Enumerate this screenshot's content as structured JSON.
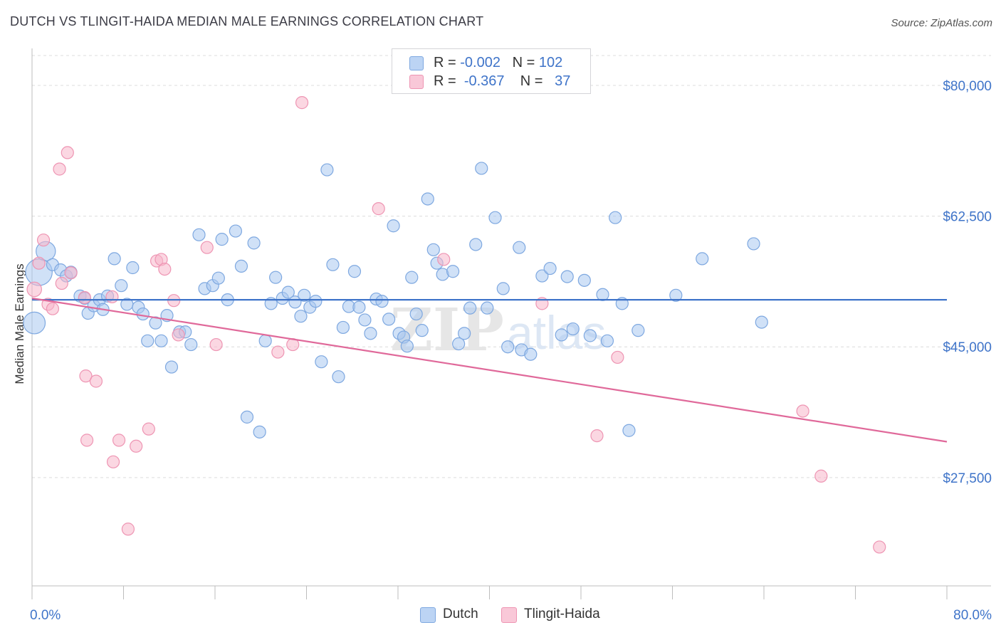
{
  "title": "DUTCH VS TLINGIT-HAIDA MEDIAN MALE EARNINGS CORRELATION CHART",
  "source": "Source: ZipAtlas.com",
  "watermark": "ZIPatlas",
  "legend": {
    "rows": [
      {
        "r_label": "R =",
        "r_value": "-0.002",
        "n_label": "N =",
        "n_value": "102"
      },
      {
        "r_label": "R =",
        "r_value": "-0.367",
        "n_label": "N =",
        "n_value": "37"
      }
    ]
  },
  "bottom_legend": [
    "Dutch",
    "Tlingit-Haida"
  ],
  "colors": {
    "dutch_fill": "#a9c8f0",
    "dutch_stroke": "#7ea8e0",
    "dutch_line": "#3f74c9",
    "tlingit_fill": "#f7b6cb",
    "tlingit_stroke": "#ee95b3",
    "tlingit_line": "#e0699a",
    "axis_text": "#3f74c9",
    "grid": "#dcdcdc"
  },
  "chart_data": {
    "type": "scatter",
    "title": "DUTCH VS TLINGIT-HAIDA MEDIAN MALE EARNINGS CORRELATION CHART",
    "xlabel": "",
    "ylabel": "Median Male Earnings",
    "xlim": [
      0,
      80
    ],
    "ylim": [
      13000,
      84000
    ],
    "x_tick_labels": [
      "0.0%",
      "80.0%"
    ],
    "y_ticks": [
      27500,
      45000,
      62500,
      80000
    ],
    "y_tick_labels": [
      "$27,500",
      "$45,000",
      "$62,500",
      "$80,000"
    ],
    "grid": true,
    "legend_position": "top-center",
    "series": [
      {
        "name": "Dutch",
        "trend": {
          "x": [
            0,
            80
          ],
          "y": [
            51300,
            51300
          ]
        },
        "points": [
          [
            1.2,
            57800,
            16
          ],
          [
            0.6,
            55000,
            22
          ],
          [
            0.2,
            48200,
            18
          ],
          [
            1.8,
            56000,
            10
          ],
          [
            2.5,
            55300,
            10
          ],
          [
            3.0,
            54500,
            10
          ],
          [
            3.4,
            55000,
            10
          ],
          [
            4.2,
            51800,
            10
          ],
          [
            4.6,
            51500,
            10
          ],
          [
            4.9,
            49500,
            10
          ],
          [
            5.4,
            50500,
            10
          ],
          [
            5.9,
            51300,
            10
          ],
          [
            6.2,
            50000,
            10
          ],
          [
            6.6,
            51800,
            10
          ],
          [
            7.2,
            56800,
            10
          ],
          [
            7.8,
            53200,
            10
          ],
          [
            8.3,
            50700,
            10
          ],
          [
            8.8,
            55600,
            10
          ],
          [
            9.3,
            50300,
            10
          ],
          [
            9.7,
            49400,
            10
          ],
          [
            10.1,
            45800,
            10
          ],
          [
            10.8,
            48200,
            10
          ],
          [
            11.3,
            45800,
            10
          ],
          [
            11.8,
            49200,
            10
          ],
          [
            12.2,
            42300,
            10
          ],
          [
            12.9,
            47000,
            10
          ],
          [
            13.4,
            47000,
            10
          ],
          [
            13.9,
            45300,
            10
          ],
          [
            14.6,
            60000,
            10
          ],
          [
            15.1,
            52800,
            10
          ],
          [
            15.8,
            53200,
            10
          ],
          [
            16.3,
            54200,
            10
          ],
          [
            16.6,
            59400,
            10
          ],
          [
            17.1,
            51300,
            10
          ],
          [
            17.8,
            60500,
            10
          ],
          [
            18.3,
            55800,
            10
          ],
          [
            18.8,
            35600,
            10
          ],
          [
            19.4,
            58900,
            10
          ],
          [
            19.9,
            33600,
            10
          ],
          [
            20.4,
            45800,
            10
          ],
          [
            20.9,
            50800,
            10
          ],
          [
            21.3,
            54300,
            10
          ],
          [
            21.9,
            51500,
            10
          ],
          [
            22.4,
            52300,
            10
          ],
          [
            23.0,
            51000,
            10
          ],
          [
            23.5,
            49100,
            10
          ],
          [
            23.8,
            51900,
            10
          ],
          [
            24.3,
            50300,
            10
          ],
          [
            24.8,
            51100,
            10
          ],
          [
            25.3,
            43000,
            10
          ],
          [
            25.8,
            68700,
            10
          ],
          [
            26.3,
            56000,
            10
          ],
          [
            26.8,
            41000,
            10
          ],
          [
            27.2,
            47600,
            10
          ],
          [
            27.7,
            50400,
            10
          ],
          [
            28.2,
            55100,
            10
          ],
          [
            28.6,
            50300,
            10
          ],
          [
            29.1,
            48600,
            10
          ],
          [
            29.6,
            46800,
            10
          ],
          [
            30.1,
            51400,
            10
          ],
          [
            30.6,
            51100,
            10
          ],
          [
            31.2,
            48700,
            10
          ],
          [
            31.6,
            61200,
            10
          ],
          [
            32.1,
            46800,
            10
          ],
          [
            32.5,
            46300,
            10
          ],
          [
            32.8,
            45100,
            10
          ],
          [
            33.2,
            54300,
            10
          ],
          [
            33.6,
            49400,
            10
          ],
          [
            34.1,
            47200,
            10
          ],
          [
            34.6,
            64800,
            10
          ],
          [
            35.1,
            58000,
            10
          ],
          [
            35.4,
            56200,
            10
          ],
          [
            35.9,
            54700,
            10
          ],
          [
            36.8,
            55100,
            10
          ],
          [
            37.3,
            45400,
            10
          ],
          [
            37.8,
            46800,
            10
          ],
          [
            38.3,
            50200,
            10
          ],
          [
            38.8,
            58700,
            10
          ],
          [
            39.3,
            68900,
            10
          ],
          [
            39.8,
            50200,
            10
          ],
          [
            40.5,
            62300,
            10
          ],
          [
            41.2,
            52800,
            10
          ],
          [
            41.6,
            45000,
            10
          ],
          [
            42.6,
            58300,
            10
          ],
          [
            42.8,
            44600,
            10
          ],
          [
            43.6,
            44000,
            10
          ],
          [
            44.6,
            54500,
            10
          ],
          [
            45.3,
            55500,
            10
          ],
          [
            46.3,
            46600,
            10
          ],
          [
            46.8,
            54400,
            10
          ],
          [
            47.3,
            47400,
            10
          ],
          [
            48.3,
            53900,
            10
          ],
          [
            48.8,
            46500,
            10
          ],
          [
            49.9,
            52000,
            10
          ],
          [
            50.3,
            45800,
            10
          ],
          [
            51.0,
            62300,
            10
          ],
          [
            51.6,
            50800,
            10
          ],
          [
            52.2,
            33800,
            10
          ],
          [
            53.0,
            47200,
            10
          ],
          [
            56.3,
            51900,
            10
          ],
          [
            58.6,
            56800,
            10
          ],
          [
            63.1,
            58800,
            10
          ],
          [
            63.8,
            48300,
            10
          ]
        ]
      },
      {
        "name": "Tlingit-Haida",
        "trend": {
          "x": [
            0,
            80
          ],
          "y": [
            51500,
            32300
          ]
        },
        "points": [
          [
            0.2,
            52700,
            12
          ],
          [
            0.6,
            56200,
            10
          ],
          [
            1.0,
            59300,
            10
          ],
          [
            1.4,
            50700,
            10
          ],
          [
            1.8,
            50100,
            10
          ],
          [
            2.4,
            68800,
            10
          ],
          [
            2.6,
            53500,
            10
          ],
          [
            3.1,
            71000,
            10
          ],
          [
            3.4,
            54900,
            10
          ],
          [
            4.6,
            51600,
            10
          ],
          [
            4.7,
            41100,
            10
          ],
          [
            4.8,
            32500,
            10
          ],
          [
            5.6,
            40400,
            10
          ],
          [
            7.0,
            51700,
            10
          ],
          [
            7.1,
            29600,
            10
          ],
          [
            7.6,
            32500,
            10
          ],
          [
            8.4,
            20600,
            10
          ],
          [
            9.1,
            31700,
            10
          ],
          [
            10.2,
            34000,
            10
          ],
          [
            10.9,
            56500,
            10
          ],
          [
            11.3,
            56700,
            10
          ],
          [
            11.6,
            55400,
            10
          ],
          [
            12.4,
            51200,
            10
          ],
          [
            12.8,
            46600,
            10
          ],
          [
            15.3,
            58300,
            10
          ],
          [
            16.1,
            45300,
            10
          ],
          [
            21.5,
            44300,
            10
          ],
          [
            22.8,
            45300,
            10
          ],
          [
            23.6,
            77700,
            10
          ],
          [
            30.3,
            63500,
            10
          ],
          [
            36.0,
            56700,
            10
          ],
          [
            44.6,
            50800,
            10
          ],
          [
            49.4,
            33100,
            10
          ],
          [
            51.2,
            43600,
            10
          ],
          [
            67.4,
            36400,
            10
          ],
          [
            69.0,
            27700,
            10
          ],
          [
            74.1,
            18200,
            10
          ]
        ]
      }
    ]
  }
}
